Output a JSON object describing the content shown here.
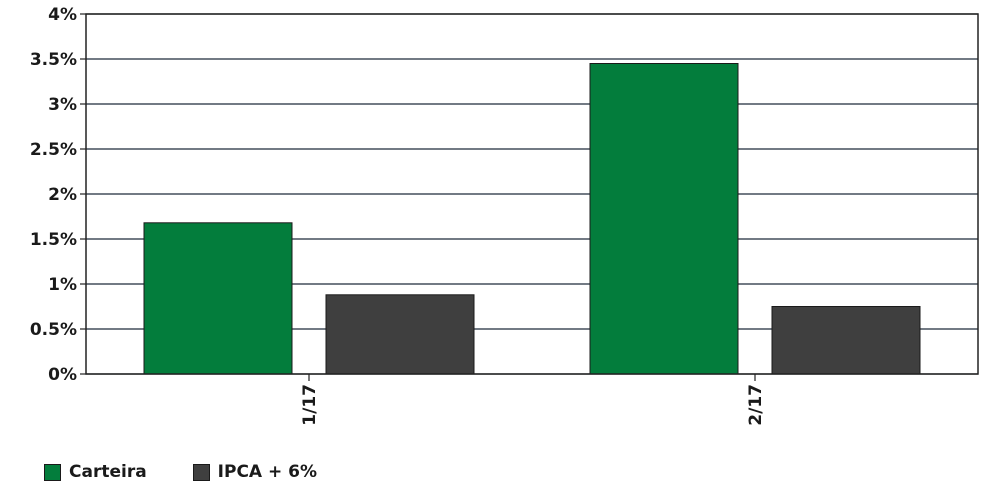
{
  "chart_data": {
    "type": "bar",
    "categories": [
      "1/17",
      "2/17"
    ],
    "series": [
      {
        "name": "Carteira",
        "color": "#037d3c",
        "values": [
          1.68,
          3.45
        ]
      },
      {
        "name": "IPCA + 6%",
        "color": "#3f3f3f",
        "values": [
          0.88,
          0.75
        ]
      }
    ],
    "yticks": [
      "0%",
      "0.5%",
      "1%",
      "1.5%",
      "2%",
      "2.5%",
      "3%",
      "3.5%",
      "4%"
    ],
    "ylim": [
      0,
      4
    ],
    "grid": true,
    "legend_position": "bottom-left",
    "title": "",
    "xlabel": "",
    "ylabel": ""
  }
}
